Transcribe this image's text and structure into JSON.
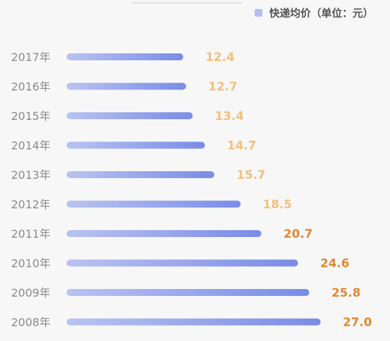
{
  "chart_data": {
    "type": "bar",
    "orientation": "horizontal",
    "legend": {
      "label": "快递均价（单位：元）",
      "placement": "top-right"
    },
    "categories": [
      "2017年",
      "2016年",
      "2015年",
      "2014年",
      "2013年",
      "2012年",
      "2011年",
      "2010年",
      "2009年",
      "2008年"
    ],
    "series": [
      {
        "name": "快递均价（单位：元）",
        "values": [
          12.4,
          12.7,
          13.4,
          14.7,
          15.7,
          18.5,
          20.7,
          24.6,
          25.8,
          27.0
        ],
        "value_labels": [
          "12.4",
          "12.7",
          "13.4",
          "14.7",
          "15.7",
          "18.5",
          "20.7",
          "24.6",
          "25.8",
          "27.0"
        ]
      }
    ],
    "xlim": [
      0,
      27.0
    ],
    "grid": false,
    "colors": {
      "bar_start": "#b9c3f1",
      "bar_end": "#7a8ce6",
      "label_light": "#f2c07a",
      "label_dark": "#e0892f"
    }
  }
}
